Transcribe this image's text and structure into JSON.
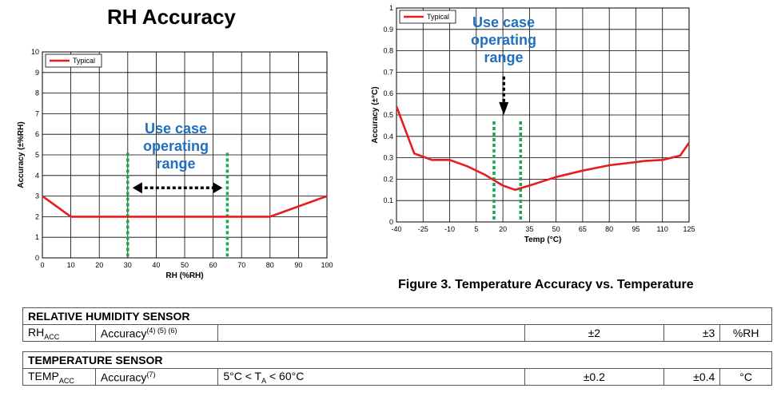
{
  "rh_chart_title": "RH Accuracy",
  "figure_caption": "Figure 3. Temperature Accuracy vs. Temperature",
  "chart_data": [
    {
      "type": "line",
      "ylabel": "Accuracy (±%RH)",
      "xlabel": "RH (%RH)",
      "xlim": [
        0,
        100
      ],
      "ylim": [
        0,
        10
      ],
      "x_ticks": [
        0,
        10,
        20,
        30,
        40,
        50,
        60,
        70,
        80,
        90,
        100
      ],
      "y_ticks": [
        0,
        1,
        2,
        3,
        4,
        5,
        6,
        7,
        8,
        9,
        10
      ],
      "grid": true,
      "legend_position": "top-left",
      "series": [
        {
          "name": "Typical",
          "color": "#e81c1c",
          "x": [
            0,
            10,
            80,
            100
          ],
          "y": [
            3,
            2,
            2,
            3
          ]
        }
      ],
      "annotations": {
        "text": [
          "Use case",
          "operating",
          "range"
        ],
        "color": "#1f6fbf",
        "range_lines_x": [
          30,
          65
        ],
        "range_line_color": "#1aa84f"
      }
    },
    {
      "type": "line",
      "ylabel": "Accuracy (±°C)",
      "xlabel": "Temp (°C)",
      "ylim": [
        0,
        1
      ],
      "x_ticks": [
        -40,
        -25,
        -10,
        5,
        20,
        35,
        50,
        65,
        80,
        95,
        110,
        125
      ],
      "y_ticks": [
        0,
        0.1,
        0.2,
        0.3,
        0.4,
        0.5,
        0.6,
        0.7,
        0.8,
        0.9,
        1
      ],
      "grid": true,
      "legend_position": "top-left",
      "series": [
        {
          "name": "Typical",
          "color": "#e81c1c",
          "x": [
            -40,
            -30,
            -20,
            -10,
            0,
            10,
            20,
            27,
            35,
            50,
            65,
            80,
            95,
            100,
            110,
            120,
            125
          ],
          "y": [
            0.54,
            0.32,
            0.29,
            0.29,
            0.26,
            0.22,
            0.17,
            0.15,
            0.17,
            0.21,
            0.24,
            0.265,
            0.28,
            0.285,
            0.29,
            0.31,
            0.37
          ]
        }
      ],
      "annotations": {
        "text": [
          "Use case",
          "operating",
          "range"
        ],
        "color": "#1f6fbf",
        "range_lines_x": [
          15,
          30
        ],
        "range_line_color": "#1aa84f"
      }
    }
  ],
  "table": {
    "rh_section": "RELATIVE HUMIDITY SENSOR",
    "rh_row": {
      "param": "RH",
      "param_sub": "ACC",
      "name": "Accuracy",
      "notes": "(4) (5) (6)",
      "condition": "",
      "typ": "±2",
      "max": "±3",
      "unit": "%RH"
    },
    "temp_section": "TEMPERATURE SENSOR",
    "temp_row": {
      "param": "TEMP",
      "param_sub": "ACC",
      "name": "Accuracy",
      "notes": "(7)",
      "cond_pre": "5°C < T",
      "cond_sub": "A",
      "cond_post": " < 60°C",
      "typ": "±0.2",
      "max": "±0.4",
      "unit": "°C"
    }
  }
}
